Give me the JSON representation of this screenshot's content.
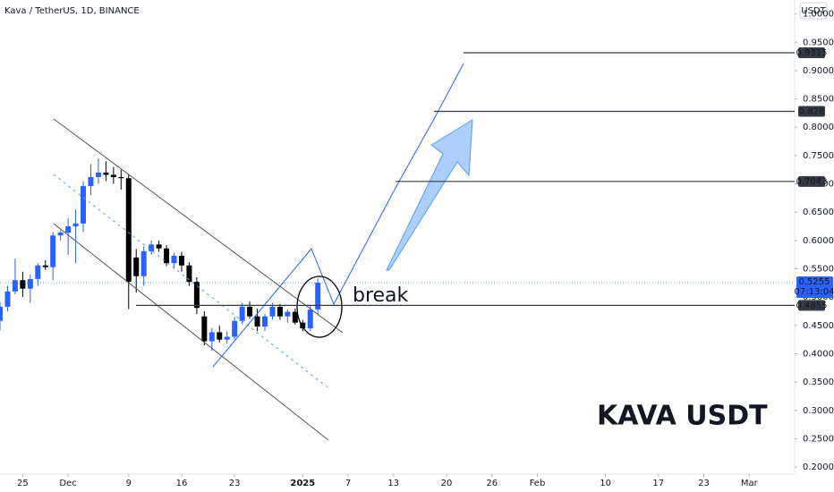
{
  "chart_data": {
    "type": "candlestick",
    "title": "Kava / TetherUS, 1D, BINANCE",
    "currency": "USDT",
    "countdown": "07:13:04",
    "up_color": "#2962ff",
    "down_color": "#000000",
    "x": [
      "2024-11-22",
      "2024-11-23",
      "2024-11-24",
      "2024-11-25",
      "2024-11-26",
      "2024-11-27",
      "2024-11-28",
      "2024-11-29",
      "2024-11-30",
      "2024-12-01",
      "2024-12-02",
      "2024-12-03",
      "2024-12-04",
      "2024-12-05",
      "2024-12-06",
      "2024-12-07",
      "2024-12-08",
      "2024-12-09",
      "2024-12-10",
      "2024-12-11",
      "2024-12-12",
      "2024-12-13",
      "2024-12-14",
      "2024-12-15",
      "2024-12-16",
      "2024-12-17",
      "2024-12-18",
      "2024-12-19",
      "2024-12-20",
      "2024-12-21",
      "2024-12-22",
      "2024-12-23",
      "2024-12-24",
      "2024-12-25",
      "2024-12-26",
      "2024-12-27",
      "2024-12-28",
      "2024-12-29",
      "2024-12-30",
      "2024-12-31",
      "2025-01-01",
      "2025-01-02",
      "2025-01-03"
    ],
    "open": [
      0.458,
      0.483,
      0.51,
      0.53,
      0.515,
      0.532,
      0.556,
      0.553,
      0.609,
      0.614,
      0.625,
      0.63,
      0.696,
      0.712,
      0.72,
      0.716,
      0.712,
      0.71,
      0.57,
      0.537,
      0.581,
      0.593,
      0.586,
      0.56,
      0.573,
      0.556,
      0.527,
      0.466,
      0.422,
      0.438,
      0.425,
      0.43,
      0.458,
      0.483,
      0.466,
      0.448,
      0.466,
      0.483,
      0.466,
      0.474,
      0.455,
      0.445,
      0.478
    ],
    "high": [
      0.491,
      0.52,
      0.568,
      0.545,
      0.54,
      0.56,
      0.565,
      0.615,
      0.618,
      0.64,
      0.655,
      0.705,
      0.735,
      0.745,
      0.74,
      0.73,
      0.725,
      0.716,
      0.585,
      0.59,
      0.6,
      0.6,
      0.592,
      0.578,
      0.58,
      0.562,
      0.535,
      0.475,
      0.445,
      0.45,
      0.44,
      0.465,
      0.49,
      0.492,
      0.48,
      0.47,
      0.49,
      0.488,
      0.478,
      0.48,
      0.46,
      0.485,
      0.533
    ],
    "low": [
      0.441,
      0.475,
      0.505,
      0.5,
      0.49,
      0.52,
      0.548,
      0.53,
      0.6,
      0.575,
      0.56,
      0.615,
      0.68,
      0.7,
      0.705,
      0.7,
      0.69,
      0.479,
      0.508,
      0.52,
      0.575,
      0.58,
      0.555,
      0.55,
      0.545,
      0.52,
      0.47,
      0.415,
      0.405,
      0.42,
      0.418,
      0.425,
      0.452,
      0.462,
      0.44,
      0.44,
      0.46,
      0.46,
      0.455,
      0.452,
      0.44,
      0.44,
      0.47
    ],
    "close": [
      0.483,
      0.51,
      0.53,
      0.515,
      0.532,
      0.556,
      0.553,
      0.609,
      0.614,
      0.625,
      0.63,
      0.696,
      0.712,
      0.72,
      0.716,
      0.712,
      0.71,
      0.527,
      0.537,
      0.581,
      0.593,
      0.586,
      0.56,
      0.573,
      0.556,
      0.527,
      0.481,
      0.422,
      0.438,
      0.425,
      0.43,
      0.458,
      0.483,
      0.466,
      0.448,
      0.466,
      0.483,
      0.466,
      0.474,
      0.455,
      0.445,
      0.478,
      0.5255
    ],
    "levels": [
      0.9315,
      0.828,
      0.7043,
      0.4855
    ],
    "annotations": [
      "break",
      "KAVA USDT"
    ],
    "xlim": [
      "2024-11-22",
      "2025-03-07"
    ],
    "xticks": [
      {
        "value": "2024-11-25",
        "label": "25"
      },
      {
        "value": "2024-12-01",
        "label": "Dec"
      },
      {
        "value": "2024-12-09",
        "label": "9"
      },
      {
        "value": "2024-12-16",
        "label": "16"
      },
      {
        "value": "2024-12-23",
        "label": "23"
      },
      {
        "value": "2025-01-01",
        "label": "2025"
      },
      {
        "value": "2025-01-07",
        "label": "7"
      },
      {
        "value": "2025-01-13",
        "label": "13"
      },
      {
        "value": "2025-01-20",
        "label": "20"
      },
      {
        "value": "2025-01-26",
        "label": "26"
      },
      {
        "value": "2025-02-01",
        "label": "Feb"
      },
      {
        "value": "2025-02-10",
        "label": "10"
      },
      {
        "value": "2025-02-17",
        "label": "17"
      },
      {
        "value": "2025-02-23",
        "label": "23"
      },
      {
        "value": "2025-03-01",
        "label": "Mar"
      }
    ],
    "ylim": [
      0.1875,
      1.0247
    ],
    "yticks": [
      {
        "value": 0.2,
        "label": "0.2000"
      },
      {
        "value": 0.25,
        "label": "0.2500"
      },
      {
        "value": 0.3,
        "label": "0.3000"
      },
      {
        "value": 0.35,
        "label": "0.3500"
      },
      {
        "value": 0.4,
        "label": "0.4000"
      },
      {
        "value": 0.45,
        "label": "0.4500"
      },
      {
        "value": 0.5,
        "label": "0.5000"
      },
      {
        "value": 0.55,
        "label": "0.5500"
      },
      {
        "value": 0.6,
        "label": "0.6000"
      },
      {
        "value": 0.65,
        "label": "0.6500"
      },
      {
        "value": 0.7,
        "label": "0.7000"
      },
      {
        "value": 0.75,
        "label": "0.7500"
      },
      {
        "value": 0.8,
        "label": "0.8000"
      },
      {
        "value": 0.85,
        "label": "0.8500"
      },
      {
        "value": 0.9,
        "label": "0.9000"
      },
      {
        "value": 0.95,
        "label": "0.9500"
      },
      {
        "value": 1,
        "label": "1.0000"
      }
    ]
  }
}
